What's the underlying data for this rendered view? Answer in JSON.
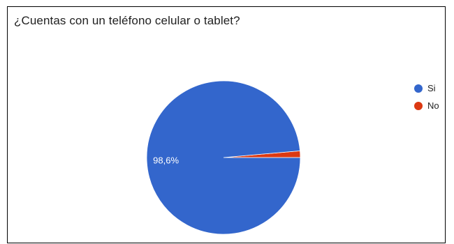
{
  "chart_data": {
    "type": "pie",
    "title": "¿Cuentas con un teléfono celular o tablet?",
    "legend_position": "right",
    "slices": [
      {
        "name": "Si",
        "value": 98.6,
        "label": "98,6%",
        "color": "#3366cc"
      },
      {
        "name": "No",
        "value": 1.4,
        "label": "",
        "color": "#dc3912"
      }
    ]
  }
}
